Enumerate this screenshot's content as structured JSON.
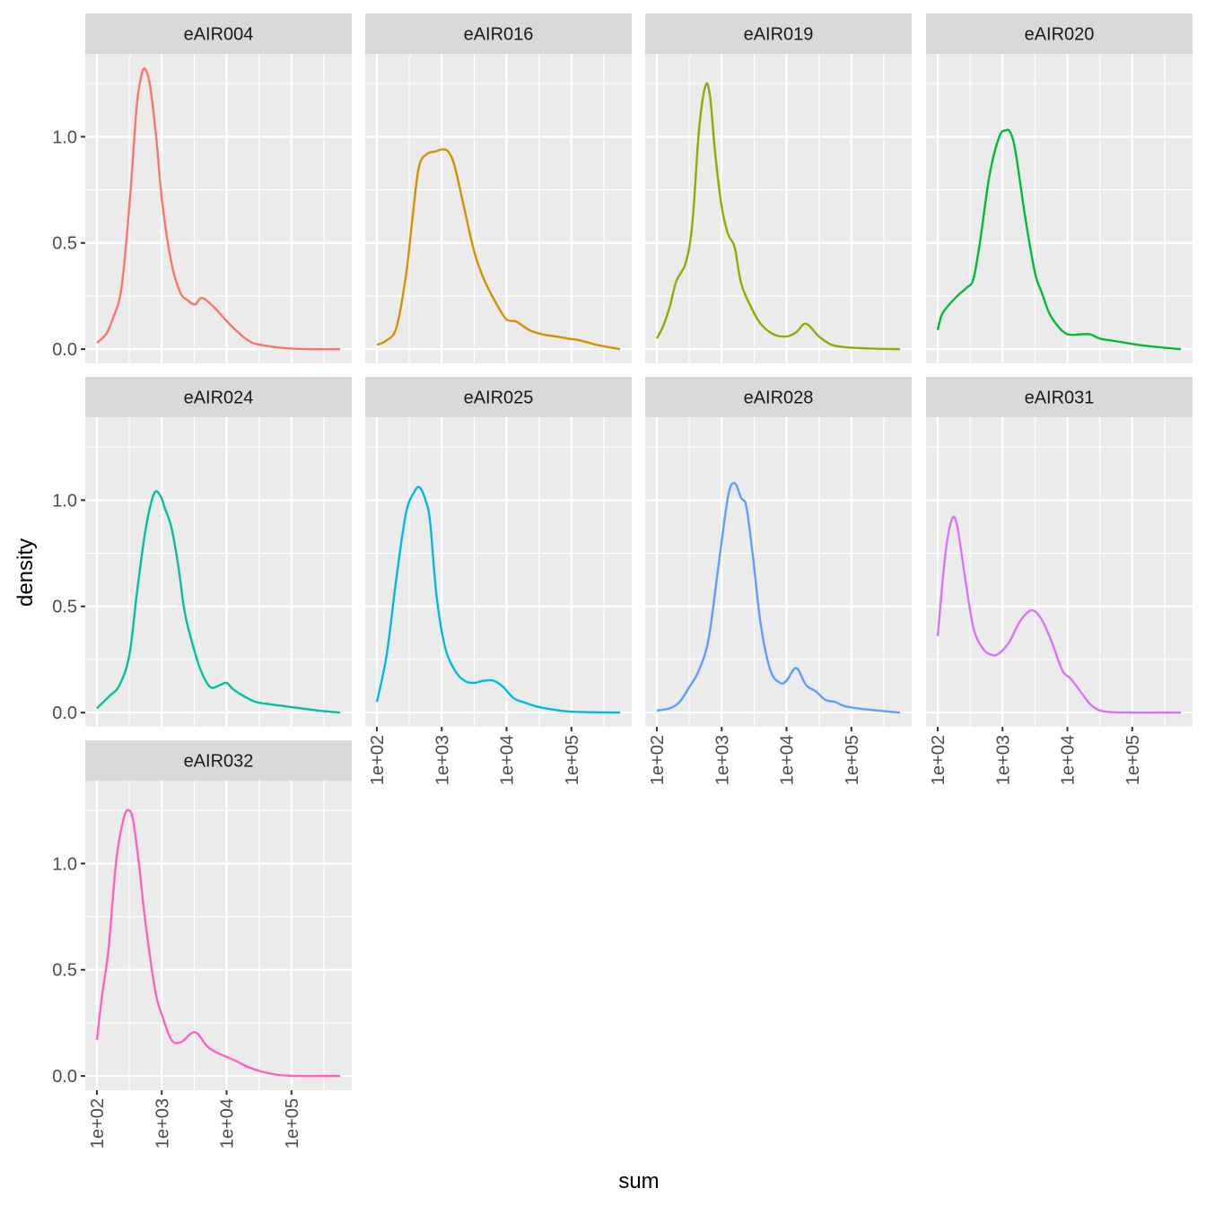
{
  "chart_data": {
    "type": "line",
    "subtype": "faceted density",
    "title": "",
    "xlabel": "sum",
    "ylabel": "density",
    "x_scale": "log10",
    "x_ticks": [
      {
        "value": 2,
        "label": "1e+02"
      },
      {
        "value": 3,
        "label": "1e+03"
      },
      {
        "value": 4,
        "label": "1e+04"
      },
      {
        "value": 5,
        "label": "1e+05"
      }
    ],
    "y_ticks": [
      {
        "value": 0.0,
        "label": "0.0"
      },
      {
        "value": 0.5,
        "label": "0.5"
      },
      {
        "value": 1.0,
        "label": "1.0"
      }
    ],
    "xlim_log10": [
      1.82,
      5.93
    ],
    "ylim": [
      -0.067,
      1.39
    ],
    "grid": true,
    "facet_columns": 4,
    "legend": "none",
    "series": [
      {
        "name": "eAIR004",
        "color": "#F8766D",
        "x": [
          2.0,
          2.14,
          2.24,
          2.38,
          2.51,
          2.61,
          2.68,
          2.74,
          2.82,
          2.92,
          3.0,
          3.14,
          3.28,
          3.4,
          3.51,
          3.6,
          3.69,
          3.83,
          4.04,
          4.25,
          4.4,
          4.53,
          4.75,
          4.94,
          5.3,
          5.75
        ],
        "y": [
          0.03,
          0.07,
          0.14,
          0.29,
          0.71,
          1.13,
          1.28,
          1.32,
          1.24,
          0.98,
          0.71,
          0.42,
          0.27,
          0.23,
          0.21,
          0.24,
          0.23,
          0.19,
          0.12,
          0.06,
          0.03,
          0.02,
          0.01,
          0.004,
          0.0,
          0.0
        ]
      },
      {
        "name": "eAIR016",
        "color": "#D39200",
        "x": [
          2.0,
          2.14,
          2.3,
          2.45,
          2.55,
          2.65,
          2.78,
          2.9,
          3.0,
          3.1,
          3.2,
          3.35,
          3.5,
          3.65,
          3.85,
          4.0,
          4.15,
          4.35,
          4.55,
          4.75,
          4.95,
          5.15,
          5.4,
          5.75
        ],
        "y": [
          0.02,
          0.04,
          0.1,
          0.35,
          0.62,
          0.86,
          0.92,
          0.93,
          0.94,
          0.93,
          0.86,
          0.66,
          0.46,
          0.33,
          0.21,
          0.14,
          0.13,
          0.09,
          0.07,
          0.06,
          0.05,
          0.04,
          0.02,
          0.0
        ]
      },
      {
        "name": "eAIR019",
        "color": "#93AA00",
        "x": [
          2.0,
          2.1,
          2.2,
          2.3,
          2.45,
          2.55,
          2.65,
          2.75,
          2.82,
          2.9,
          3.0,
          3.1,
          3.2,
          3.3,
          3.45,
          3.6,
          3.8,
          4.0,
          4.15,
          4.3,
          4.5,
          4.7,
          4.95,
          5.3,
          5.75
        ],
        "y": [
          0.05,
          0.11,
          0.2,
          0.32,
          0.41,
          0.6,
          1.03,
          1.24,
          1.19,
          0.92,
          0.67,
          0.54,
          0.48,
          0.31,
          0.2,
          0.12,
          0.07,
          0.06,
          0.08,
          0.12,
          0.06,
          0.02,
          0.008,
          0.003,
          0.0
        ]
      },
      {
        "name": "eAIR020",
        "color": "#00BA38",
        "x": [
          2.0,
          2.06,
          2.15,
          2.3,
          2.45,
          2.55,
          2.65,
          2.8,
          2.95,
          3.05,
          3.12,
          3.2,
          3.35,
          3.5,
          3.6,
          3.72,
          3.85,
          4.0,
          4.2,
          4.35,
          4.5,
          4.7,
          4.9,
          5.1,
          5.4,
          5.75
        ],
        "y": [
          0.09,
          0.16,
          0.2,
          0.25,
          0.29,
          0.33,
          0.5,
          0.82,
          1.0,
          1.03,
          1.02,
          0.93,
          0.62,
          0.36,
          0.27,
          0.17,
          0.11,
          0.07,
          0.07,
          0.07,
          0.05,
          0.04,
          0.03,
          0.02,
          0.01,
          0.0
        ]
      },
      {
        "name": "eAIR024",
        "color": "#00C19F",
        "x": [
          2.0,
          2.1,
          2.2,
          2.35,
          2.5,
          2.62,
          2.75,
          2.88,
          2.98,
          3.05,
          3.15,
          3.25,
          3.35,
          3.45,
          3.6,
          3.75,
          3.9,
          4.0,
          4.1,
          4.25,
          4.45,
          4.65,
          4.9,
          5.15,
          5.4,
          5.75
        ],
        "y": [
          0.02,
          0.05,
          0.08,
          0.13,
          0.27,
          0.57,
          0.86,
          1.03,
          1.02,
          0.96,
          0.87,
          0.7,
          0.48,
          0.35,
          0.2,
          0.12,
          0.13,
          0.14,
          0.11,
          0.08,
          0.05,
          0.04,
          0.03,
          0.02,
          0.01,
          0.0
        ]
      },
      {
        "name": "eAIR025",
        "color": "#00B9E3",
        "x": [
          2.0,
          2.15,
          2.3,
          2.45,
          2.58,
          2.66,
          2.75,
          2.82,
          2.92,
          3.05,
          3.2,
          3.35,
          3.5,
          3.65,
          3.8,
          3.95,
          4.1,
          4.25,
          4.45,
          4.7,
          4.95,
          5.3,
          5.75
        ],
        "y": [
          0.05,
          0.27,
          0.63,
          0.94,
          1.04,
          1.06,
          1.0,
          0.9,
          0.55,
          0.31,
          0.2,
          0.15,
          0.14,
          0.15,
          0.15,
          0.12,
          0.07,
          0.05,
          0.03,
          0.015,
          0.005,
          0.002,
          0.0
        ]
      },
      {
        "name": "eAIR028",
        "color": "#619CFF",
        "x": [
          2.0,
          2.2,
          2.35,
          2.5,
          2.65,
          2.8,
          2.95,
          3.1,
          3.2,
          3.3,
          3.38,
          3.48,
          3.6,
          3.75,
          3.9,
          4.0,
          4.15,
          4.3,
          4.45,
          4.6,
          4.75,
          4.9,
          5.1,
          5.4,
          5.75
        ],
        "y": [
          0.01,
          0.02,
          0.05,
          0.12,
          0.2,
          0.35,
          0.69,
          1.02,
          1.08,
          1.01,
          0.97,
          0.74,
          0.42,
          0.2,
          0.14,
          0.15,
          0.21,
          0.13,
          0.1,
          0.06,
          0.05,
          0.03,
          0.02,
          0.01,
          0.0
        ]
      },
      {
        "name": "eAIR031",
        "color": "#DB72FB",
        "x": [
          2.0,
          2.12,
          2.22,
          2.3,
          2.42,
          2.55,
          2.7,
          2.85,
          2.95,
          3.1,
          3.25,
          3.38,
          3.48,
          3.6,
          3.75,
          3.92,
          4.05,
          4.2,
          4.35,
          4.5,
          4.7,
          5.0,
          5.4,
          5.75
        ],
        "y": [
          0.36,
          0.75,
          0.91,
          0.88,
          0.64,
          0.4,
          0.3,
          0.27,
          0.28,
          0.33,
          0.42,
          0.47,
          0.48,
          0.44,
          0.34,
          0.2,
          0.16,
          0.1,
          0.04,
          0.01,
          0.002,
          0.0,
          0.0,
          0.0
        ]
      },
      {
        "name": "eAIR032",
        "color": "#FF61C3",
        "x": [
          2.0,
          2.08,
          2.18,
          2.3,
          2.42,
          2.5,
          2.56,
          2.64,
          2.75,
          2.9,
          3.0,
          3.15,
          3.3,
          3.45,
          3.55,
          3.7,
          3.85,
          4.0,
          4.15,
          4.35,
          4.55,
          4.8,
          5.1,
          5.4,
          5.75
        ],
        "y": [
          0.17,
          0.38,
          0.6,
          1.02,
          1.22,
          1.25,
          1.2,
          1.02,
          0.72,
          0.4,
          0.29,
          0.17,
          0.16,
          0.2,
          0.2,
          0.14,
          0.11,
          0.09,
          0.07,
          0.04,
          0.02,
          0.005,
          0.0,
          0.0,
          0.0
        ]
      }
    ]
  }
}
